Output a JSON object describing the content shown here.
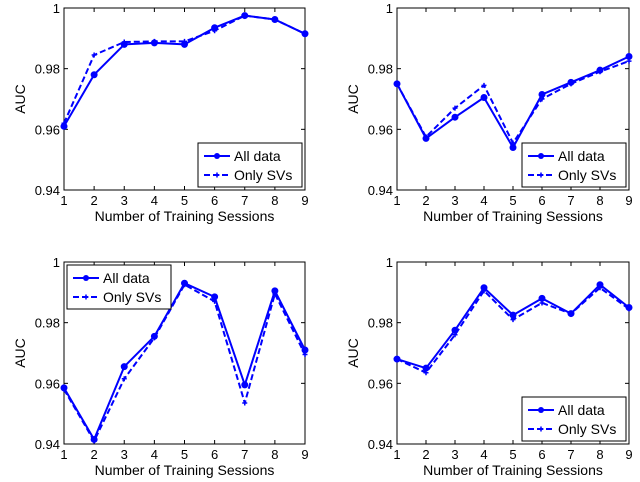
{
  "colors": {
    "series": "#0000ff",
    "axis": "#000000"
  },
  "chart_data": [
    {
      "type": "line",
      "xlabel": "Number of Training Sessions",
      "ylabel": "AUC",
      "xlim": [
        1,
        9
      ],
      "ylim": [
        0.94,
        1
      ],
      "xticks": [
        "1",
        "2",
        "3",
        "4",
        "5",
        "6",
        "7",
        "8",
        "9"
      ],
      "yticks": [
        "0.94",
        "0.96",
        "0.98",
        "1"
      ],
      "legend_position": "bottom-right",
      "x": [
        1,
        2,
        3,
        4,
        5,
        6,
        7,
        8,
        9
      ],
      "series": [
        {
          "name": "All data",
          "style": "solid",
          "values": [
            0.961,
            0.978,
            0.988,
            0.9885,
            0.988,
            0.9935,
            0.9975,
            0.9962,
            0.9915
          ]
        },
        {
          "name": "Only SVs",
          "style": "dashed",
          "values": [
            0.962,
            0.9845,
            0.9888,
            0.989,
            0.989,
            0.9925,
            0.9975,
            0.9962,
            0.9915
          ]
        }
      ]
    },
    {
      "type": "line",
      "xlabel": "Number of Training Sessions",
      "ylabel": "AUC",
      "xlim": [
        1,
        9
      ],
      "ylim": [
        0.94,
        1
      ],
      "xticks": [
        "1",
        "2",
        "3",
        "4",
        "5",
        "6",
        "7",
        "8",
        "9"
      ],
      "yticks": [
        "0.94",
        "0.96",
        "0.98",
        "1"
      ],
      "legend_position": "bottom-right",
      "x": [
        1,
        2,
        3,
        4,
        5,
        6,
        7,
        8,
        9
      ],
      "series": [
        {
          "name": "All data",
          "style": "solid",
          "values": [
            0.975,
            0.957,
            0.964,
            0.9705,
            0.954,
            0.9715,
            0.9755,
            0.9795,
            0.984
          ]
        },
        {
          "name": "Only SVs",
          "style": "dashed",
          "values": [
            0.975,
            0.9575,
            0.967,
            0.9745,
            0.9555,
            0.97,
            0.975,
            0.979,
            0.9825
          ]
        }
      ]
    },
    {
      "type": "line",
      "xlabel": "Number of Training Sessions",
      "ylabel": "AUC",
      "xlim": [
        1,
        9
      ],
      "ylim": [
        0.94,
        1
      ],
      "xticks": [
        "1",
        "2",
        "3",
        "4",
        "5",
        "6",
        "7",
        "8",
        "9"
      ],
      "yticks": [
        "0.94",
        "0.96",
        "0.98",
        "1"
      ],
      "legend_position": "top-left",
      "x": [
        1,
        2,
        3,
        4,
        5,
        6,
        7,
        8,
        9
      ],
      "series": [
        {
          "name": "All data",
          "style": "solid",
          "values": [
            0.9585,
            0.9415,
            0.9655,
            0.9755,
            0.993,
            0.9885,
            0.9595,
            0.9905,
            0.971
          ]
        },
        {
          "name": "Only SVs",
          "style": "dashed",
          "values": [
            0.958,
            0.941,
            0.9615,
            0.975,
            0.9925,
            0.987,
            0.9535,
            0.9895,
            0.9695
          ]
        }
      ]
    },
    {
      "type": "line",
      "xlabel": "Number of Training Sessions",
      "ylabel": "AUC",
      "xlim": [
        1,
        9
      ],
      "ylim": [
        0.94,
        1
      ],
      "xticks": [
        "1",
        "2",
        "3",
        "4",
        "5",
        "6",
        "7",
        "8",
        "9"
      ],
      "yticks": [
        "0.94",
        "0.96",
        "0.98",
        "1"
      ],
      "legend_position": "bottom-right",
      "x": [
        1,
        2,
        3,
        4,
        5,
        6,
        7,
        8,
        9
      ],
      "series": [
        {
          "name": "All data",
          "style": "solid",
          "values": [
            0.968,
            0.965,
            0.9775,
            0.9915,
            0.9825,
            0.988,
            0.983,
            0.9925,
            0.985
          ]
        },
        {
          "name": "Only SVs",
          "style": "dashed",
          "values": [
            0.968,
            0.9635,
            0.976,
            0.9905,
            0.981,
            0.9865,
            0.983,
            0.9915,
            0.9845
          ]
        }
      ]
    }
  ]
}
